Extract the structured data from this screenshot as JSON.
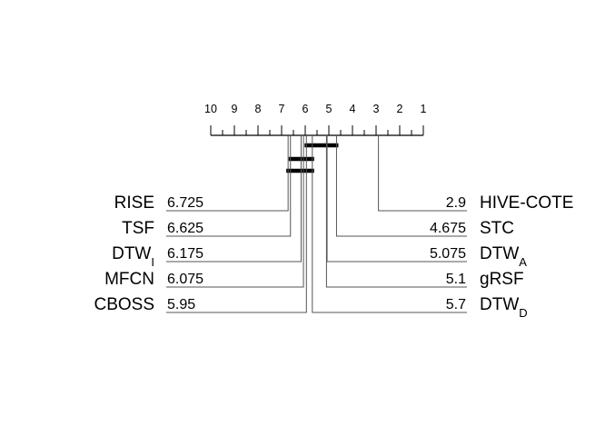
{
  "diagram": {
    "type": "critical-difference",
    "axis_ticks": [
      "10",
      "9",
      "8",
      "7",
      "6",
      "5",
      "4",
      "3",
      "2",
      "1"
    ],
    "left_methods": [
      {
        "name": "RISE",
        "sub": "",
        "rank_text": "6.725",
        "rank": 6.725
      },
      {
        "name": "TSF",
        "sub": "",
        "rank_text": "6.625",
        "rank": 6.625
      },
      {
        "name": "DTW",
        "sub": "I",
        "rank_text": "6.175",
        "rank": 6.175
      },
      {
        "name": "MFCN",
        "sub": "",
        "rank_text": "6.075",
        "rank": 6.075
      },
      {
        "name": "CBOSS",
        "sub": "",
        "rank_text": "5.95",
        "rank": 5.95
      }
    ],
    "right_methods": [
      {
        "name": "HIVE-COTE",
        "sub": "",
        "rank_text": "2.9",
        "rank": 2.9
      },
      {
        "name": "STC",
        "sub": "",
        "rank_text": "4.675",
        "rank": 4.675
      },
      {
        "name": "DTW",
        "sub": "A",
        "rank_text": "5.075",
        "rank": 5.075
      },
      {
        "name": "gRSF",
        "sub": "",
        "rank_text": "5.1",
        "rank": 5.1
      },
      {
        "name": "DTW",
        "sub": "D",
        "rank_text": "5.7",
        "rank": 5.7
      }
    ],
    "cliques": [
      {
        "from": 4.675,
        "to": 5.95
      },
      {
        "from": 5.7,
        "to": 6.625
      },
      {
        "from": 5.7,
        "to": 6.725
      }
    ]
  }
}
